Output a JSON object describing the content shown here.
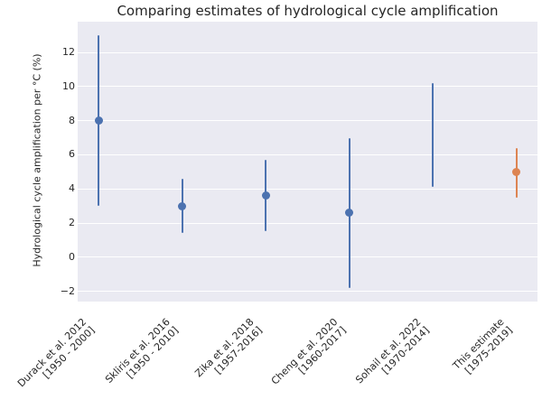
{
  "chart_data": {
    "type": "scatter",
    "title": "Comparing estimates of hydrological cycle amplification",
    "xlabel": "",
    "ylabel": "Hydrological cycle amplification per °C (%)",
    "ylim": [
      -2.6,
      13.8
    ],
    "yticks": [
      -2,
      0,
      2,
      4,
      6,
      8,
      10,
      12
    ],
    "grid": "horizontal",
    "legend": "none",
    "plot_bg_color": "#eaeaf2",
    "grid_color": "#ffffff",
    "text_color": "#262626",
    "points": [
      {
        "label": "Durack et al. 2012",
        "period": "[1950 - 2000]",
        "center": 8.0,
        "low": 3.0,
        "high": 13.0,
        "color": "#4c72b0"
      },
      {
        "label": "Skliris et al. 2016",
        "period": "[1950 - 2010]",
        "center": 3.0,
        "low": 1.4,
        "high": 4.6,
        "color": "#4c72b0"
      },
      {
        "label": "Zika et al. 2018",
        "period": "[1957-2016]",
        "center": 3.6,
        "low": 1.5,
        "high": 5.7,
        "color": "#4c72b0"
      },
      {
        "label": "Cheng et al. 2020",
        "period": "[1960-2017]",
        "center": 2.6,
        "low": -1.8,
        "high": 7.0,
        "color": "#4c72b0"
      },
      {
        "label": "Sohail et al. 2022",
        "period": "[1970-2014]",
        "center": null,
        "low": 4.1,
        "high": 10.2,
        "color": "#4c72b0"
      },
      {
        "label": "This estimate",
        "period": "[1975-2019]",
        "center": 5.0,
        "low": 3.5,
        "high": 6.4,
        "color": "#dd8452"
      }
    ]
  }
}
